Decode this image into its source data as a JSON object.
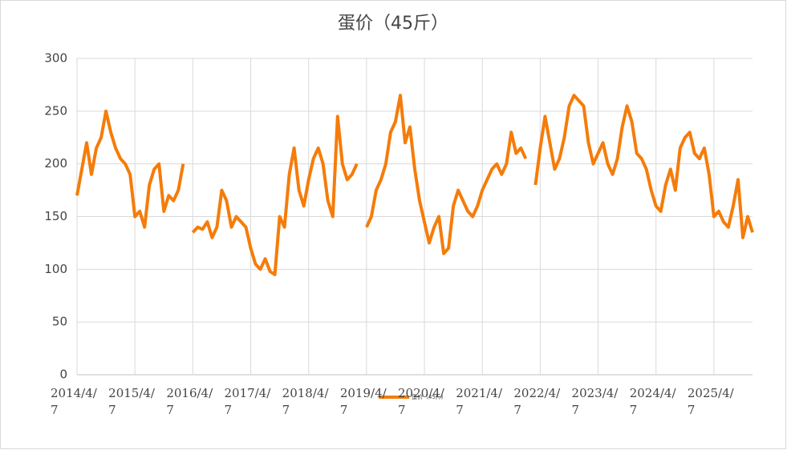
{
  "chart_data": {
    "type": "line",
    "title": "蛋价（45斤）",
    "categories": [
      "2014/4/7",
      null,
      null,
      null,
      null,
      null,
      null,
      null,
      null,
      null,
      null,
      null,
      "2015/4/7",
      null,
      null,
      null,
      null,
      null,
      null,
      null,
      null,
      null,
      null,
      null,
      "2016/4/7",
      null,
      null,
      null,
      null,
      null,
      null,
      null,
      null,
      null,
      null,
      null,
      "2017/4/7",
      null,
      null,
      null,
      null,
      null,
      null,
      null,
      null,
      null,
      null,
      null,
      "2018/4/7",
      null,
      null,
      null,
      null,
      null,
      null,
      null,
      null,
      null,
      null,
      null,
      "2019/4/7",
      null,
      null,
      null,
      null,
      null,
      null,
      null,
      null,
      null,
      null,
      null,
      "2020/4/7",
      null,
      null,
      null,
      null,
      null,
      null,
      null,
      null,
      null,
      null,
      null,
      "2021/4/7",
      null,
      null,
      null,
      null,
      null,
      null,
      null,
      null,
      null,
      null,
      null,
      "2022/4/7",
      null,
      null,
      null,
      null,
      null,
      null,
      null,
      null,
      null,
      null,
      null,
      "2023/4/7",
      null,
      null,
      null,
      null,
      null,
      null,
      null,
      null,
      null,
      null,
      null,
      "2024/4/7",
      null,
      null,
      null,
      null,
      null,
      null,
      null,
      null,
      null,
      null,
      null,
      "2025/4/7",
      null,
      null,
      null,
      null,
      null,
      null,
      null,
      null
    ],
    "series": [
      {
        "name": "蛋价（45斤）",
        "color": "#f57c0a",
        "values": [
          170,
          195,
          220,
          190,
          215,
          225,
          250,
          230,
          215,
          205,
          200,
          190,
          150,
          155,
          140,
          180,
          195,
          200,
          155,
          170,
          165,
          175,
          200,
          null,
          135,
          140,
          138,
          145,
          130,
          140,
          175,
          165,
          140,
          150,
          145,
          140,
          120,
          105,
          100,
          110,
          98,
          95,
          150,
          140,
          190,
          215,
          175,
          160,
          185,
          205,
          215,
          200,
          165,
          150,
          245,
          200,
          185,
          190,
          200,
          null,
          140,
          150,
          175,
          185,
          200,
          230,
          240,
          265,
          220,
          235,
          195,
          165,
          145,
          125,
          140,
          150,
          115,
          120,
          160,
          175,
          165,
          155,
          150,
          160,
          175,
          185,
          195,
          200,
          190,
          200,
          230,
          210,
          215,
          205,
          null,
          180,
          215,
          245,
          220,
          195,
          205,
          225,
          255,
          265,
          260,
          255,
          220,
          200,
          210,
          220,
          200,
          190,
          205,
          235,
          255,
          240,
          210,
          205,
          195,
          175,
          160,
          155,
          180,
          195,
          175,
          215,
          225,
          230,
          210,
          205,
          215,
          190,
          150,
          155,
          145,
          140,
          160,
          185,
          130,
          150,
          135
        ]
      }
    ],
    "ylim": [
      0,
      300
    ],
    "yticks": [
      0,
      50,
      100,
      150,
      200,
      250,
      300
    ],
    "grid": true
  }
}
